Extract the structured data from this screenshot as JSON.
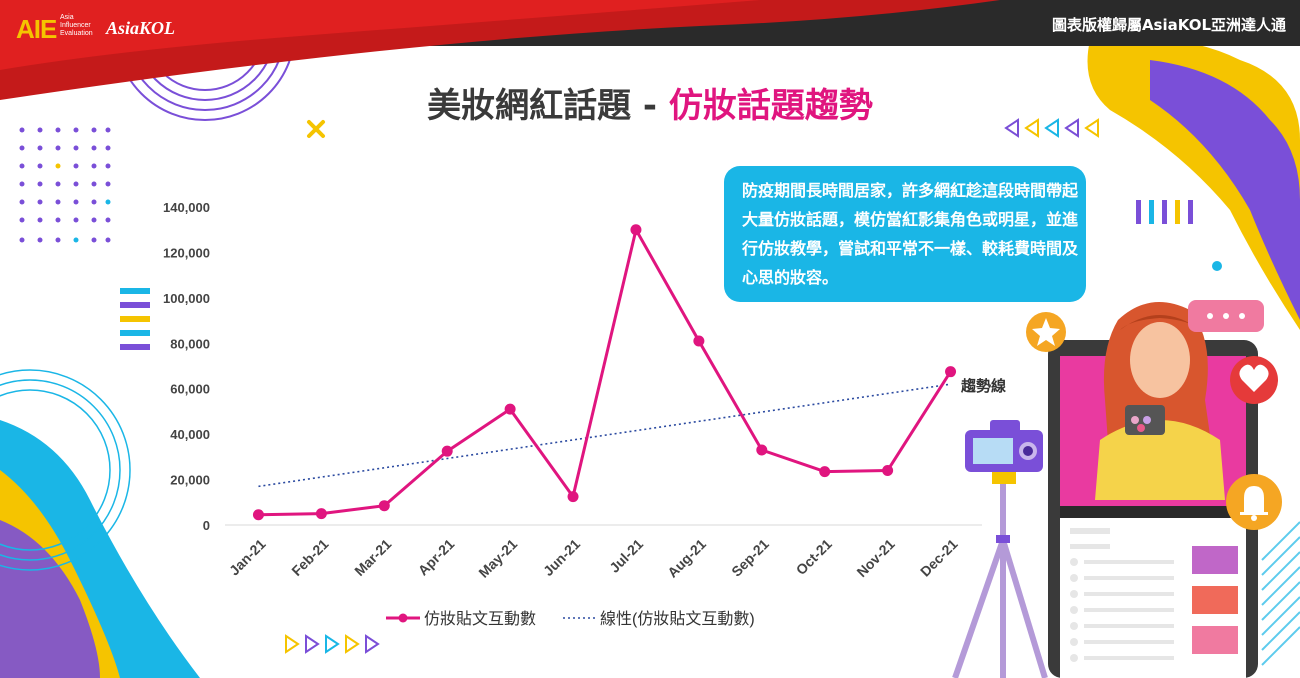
{
  "header": {
    "copyright": "圖表版權歸屬AsiaKOL亞洲達人通",
    "logo_aie": "AIE",
    "logo_sub_lines": [
      "Asia",
      "Influencer",
      "Evaluation"
    ],
    "logo_kol": "AsiaKOL"
  },
  "title": {
    "part1": "美妝網紅話題 - ",
    "part2": "仿妝話題趨勢"
  },
  "callout": {
    "text": "防疫期間長時間居家，許多網紅趁這段時間帶起大量仿妝話題，模仿當紅影集角色或明星，並進行仿妝教學，嘗試和平常不一樣、較耗費時間及心思的妝容。"
  },
  "colors": {
    "line": "#e0157f",
    "trend": "#2b4aa0",
    "accent_blue": "#1ab6e6",
    "banner_red": "#c41a1a",
    "purple": "#7a4fd8",
    "yellow": "#f5c400"
  },
  "chart_data": {
    "type": "line",
    "categories": [
      "Jan-21",
      "Feb-21",
      "Mar-21",
      "Apr-21",
      "May-21",
      "Jun-21",
      "Jul-21",
      "Aug-21",
      "Sep-21",
      "Oct-21",
      "Nov-21",
      "Dec-21"
    ],
    "series": [
      {
        "name": "仿妝貼文互動數",
        "values": [
          4500,
          5000,
          8500,
          32500,
          51000,
          12500,
          130000,
          81000,
          33000,
          23500,
          24000,
          67500
        ]
      }
    ],
    "trendline": {
      "name": "線性(仿妝貼文互動數)",
      "label": "趨勢線",
      "start": 17000,
      "end": 62000
    },
    "ylim": [
      0,
      140000
    ],
    "yticks": [
      0,
      20000,
      40000,
      60000,
      80000,
      100000,
      120000,
      140000
    ],
    "ytick_labels": [
      "0",
      "20,000",
      "40,000",
      "60,000",
      "80,000",
      "100,000",
      "120,000",
      "140,000"
    ],
    "legend_position": "bottom",
    "grid": false
  },
  "icons": [
    "star-icon",
    "heart-icon",
    "bell-icon",
    "camera-icon",
    "chat-bubble-icon",
    "close-icon"
  ]
}
